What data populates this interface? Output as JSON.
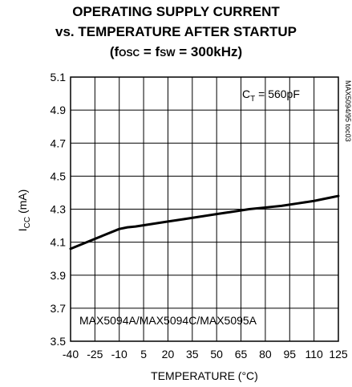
{
  "chart_data": {
    "type": "line",
    "title": {
      "line1": "OPERATING SUPPLY CURRENT",
      "line2": "vs. TEMPERATURE AFTER STARTUP",
      "line3_prefix": "(f",
      "line3_sub1": "OSC",
      "line3_mid": " = f",
      "line3_sub2": "SW",
      "line3_suffix": " = 300kHz)"
    },
    "xlabel": "TEMPERATURE (°C)",
    "ylabel": {
      "main": "I",
      "sub": "CC",
      "unit": " (mA)"
    },
    "xlim": [
      -40,
      125
    ],
    "ylim": [
      3.5,
      5.1
    ],
    "xticks": [
      -40,
      -25,
      -10,
      5,
      20,
      35,
      50,
      65,
      80,
      95,
      110,
      125
    ],
    "xtick_labels": [
      "-40",
      "-25",
      "-10",
      "5",
      "20",
      "35",
      "50",
      "65",
      "80",
      "95",
      "110",
      "125"
    ],
    "yticks": [
      3.5,
      3.7,
      3.9,
      4.1,
      4.3,
      4.5,
      4.7,
      4.9,
      5.1
    ],
    "ytick_labels": [
      "3.5",
      "3.7",
      "3.9",
      "4.1",
      "4.3",
      "4.5",
      "4.7",
      "4.9",
      "5.1"
    ],
    "grid": true,
    "series": [
      {
        "x": [
          -40,
          -30,
          -20,
          -10,
          -5,
          0,
          10,
          20,
          30,
          40,
          50,
          60,
          70,
          80,
          90,
          100,
          110,
          120,
          125
        ],
        "y": [
          4.06,
          4.1,
          4.14,
          4.18,
          4.19,
          4.195,
          4.21,
          4.225,
          4.24,
          4.255,
          4.27,
          4.285,
          4.3,
          4.31,
          4.32,
          4.335,
          4.35,
          4.37,
          4.38
        ]
      }
    ],
    "annotations": {
      "ct": {
        "main": "C",
        "sub": "T",
        "rest": " = 560pF"
      },
      "parts": "MAX5094A/MAX5094C/MAX5095A",
      "code": "MAX5094/95 toc03"
    }
  }
}
